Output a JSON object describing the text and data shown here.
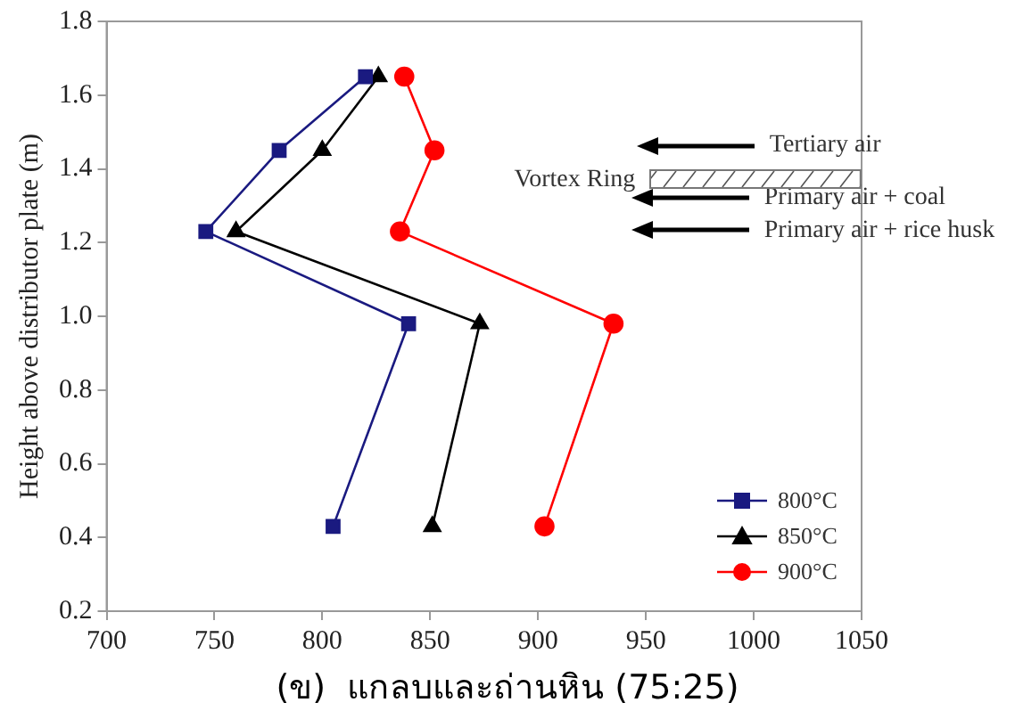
{
  "chart_data": {
    "type": "line",
    "ylabel": "Height above distributor plate (m)",
    "xlim": [
      700,
      1050
    ],
    "xticks": [
      700,
      750,
      800,
      850,
      900,
      950,
      1000,
      1050
    ],
    "ylim": [
      0.2,
      1.8
    ],
    "yticks": [
      0.2,
      0.4,
      0.6,
      0.8,
      {
        "value": 1,
        "label": "1.0"
      },
      1.2,
      1.4,
      1.6,
      1.8
    ],
    "grid": false,
    "legend": "bottom right",
    "line_style": "solid",
    "series": [
      {
        "name": "800°C",
        "color": "#1a1a80",
        "marker": "square",
        "x": [
          820,
          780,
          746,
          840,
          805
        ],
        "values": [
          1.65,
          1.45,
          1.23,
          0.98,
          0.43
        ]
      },
      {
        "name": "850°C",
        "color": "#000000",
        "marker": "triangle",
        "x": [
          826,
          800,
          760,
          873,
          851
        ],
        "values": [
          1.65,
          1.45,
          1.23,
          0.98,
          0.43
        ]
      },
      {
        "name": "900°C",
        "color": "#ff0000",
        "marker": "circle",
        "x": [
          838,
          852,
          836,
          935,
          903
        ],
        "values": [
          1.65,
          1.45,
          1.23,
          0.98,
          0.43
        ]
      }
    ],
    "annotations": [
      "Tertiary air",
      "Vortex Ring",
      "Primary air + coal",
      "Primary air + rice husk",
      "(ข)  แกลบและถ่านหิน (75:25)"
    ]
  }
}
